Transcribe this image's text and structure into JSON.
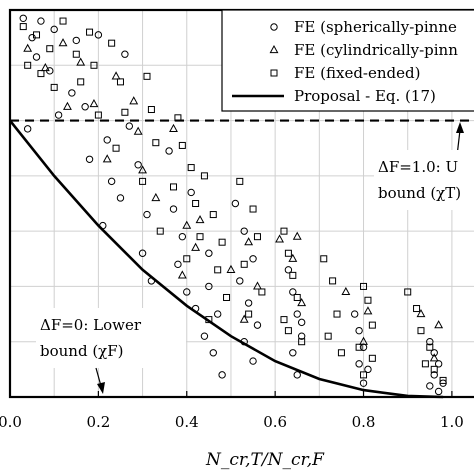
{
  "chart_data": {
    "type": "scatter",
    "xlabel": "N_cr,T/N_cr,F",
    "xlim": [
      0.0,
      1.05
    ],
    "ylim": [
      0.0,
      1.4
    ],
    "x_ticks": [
      "0.0",
      "0.2",
      "0.4",
      "0.6",
      "0.8",
      "1.0"
    ],
    "grid": true,
    "legend_position": "top-right",
    "legend": [
      {
        "label": "FE (spherically-pinne",
        "marker": "circle"
      },
      {
        "label": "FE (cylindrically-pinn",
        "marker": "triangle"
      },
      {
        "label": "FE (fixed-ended)",
        "marker": "square"
      },
      {
        "label": "Proposal - Eq. (17)",
        "marker": "line"
      }
    ],
    "annotations": {
      "upper": {
        "line1": "ΔF=1.0: U",
        "line2": "bound (χT)"
      },
      "lower": {
        "line1": "ΔF=0:  Lower",
        "line2": "bound (χF)"
      }
    },
    "reference_line": {
      "y": 1.0,
      "style": "dashed"
    },
    "proposal_curve": {
      "x": [
        0.0,
        0.1,
        0.2,
        0.3,
        0.4,
        0.5,
        0.6,
        0.7,
        0.8,
        0.9,
        0.98
      ],
      "y": [
        1.0,
        0.8,
        0.62,
        0.46,
        0.33,
        0.22,
        0.13,
        0.065,
        0.025,
        0.004,
        0.0
      ]
    },
    "series": [
      {
        "marker": "circle",
        "points": [
          [
            0.03,
            1.37
          ],
          [
            0.05,
            1.3
          ],
          [
            0.07,
            1.36
          ],
          [
            0.06,
            1.23
          ],
          [
            0.1,
            1.33
          ],
          [
            0.09,
            1.18
          ],
          [
            0.04,
            0.97
          ],
          [
            0.11,
            1.02
          ],
          [
            0.15,
            1.29
          ],
          [
            0.14,
            1.1
          ],
          [
            0.17,
            1.05
          ],
          [
            0.18,
            0.86
          ],
          [
            0.2,
            1.31
          ],
          [
            0.22,
            0.93
          ],
          [
            0.23,
            0.78
          ],
          [
            0.21,
            0.62
          ],
          [
            0.26,
            1.24
          ],
          [
            0.27,
            0.98
          ],
          [
            0.25,
            0.72
          ],
          [
            0.29,
            0.84
          ],
          [
            0.31,
            0.66
          ],
          [
            0.3,
            0.52
          ],
          [
            0.32,
            0.42
          ],
          [
            0.36,
            0.89
          ],
          [
            0.37,
            0.68
          ],
          [
            0.39,
            0.58
          ],
          [
            0.38,
            0.48
          ],
          [
            0.4,
            0.38
          ],
          [
            0.42,
            0.32
          ],
          [
            0.41,
            0.74
          ],
          [
            0.45,
            0.4
          ],
          [
            0.47,
            0.3
          ],
          [
            0.44,
            0.22
          ],
          [
            0.46,
            0.16
          ],
          [
            0.48,
            0.08
          ],
          [
            0.45,
            0.52
          ],
          [
            0.51,
            0.7
          ],
          [
            0.53,
            0.6
          ],
          [
            0.55,
            0.5
          ],
          [
            0.52,
            0.42
          ],
          [
            0.54,
            0.34
          ],
          [
            0.56,
            0.26
          ],
          [
            0.53,
            0.2
          ],
          [
            0.55,
            0.13
          ],
          [
            0.63,
            0.46
          ],
          [
            0.64,
            0.38
          ],
          [
            0.65,
            0.3
          ],
          [
            0.66,
            0.22
          ],
          [
            0.64,
            0.16
          ],
          [
            0.65,
            0.08
          ],
          [
            0.66,
            0.27
          ],
          [
            0.78,
            0.3
          ],
          [
            0.79,
            0.24
          ],
          [
            0.8,
            0.18
          ],
          [
            0.79,
            0.12
          ],
          [
            0.81,
            0.1
          ],
          [
            0.8,
            0.05
          ],
          [
            0.95,
            0.2
          ],
          [
            0.96,
            0.16
          ],
          [
            0.97,
            0.12
          ],
          [
            0.96,
            0.08
          ],
          [
            0.98,
            0.05
          ],
          [
            0.97,
            0.02
          ],
          [
            0.95,
            0.04
          ]
        ]
      },
      {
        "marker": "triangle",
        "points": [
          [
            0.04,
            1.26
          ],
          [
            0.08,
            1.19
          ],
          [
            0.12,
            1.28
          ],
          [
            0.13,
            1.05
          ],
          [
            0.16,
            1.21
          ],
          [
            0.19,
            1.06
          ],
          [
            0.24,
            1.16
          ],
          [
            0.22,
            0.86
          ],
          [
            0.28,
            1.07
          ],
          [
            0.3,
            0.82
          ],
          [
            0.33,
            0.72
          ],
          [
            0.29,
            0.96
          ],
          [
            0.37,
            0.97
          ],
          [
            0.4,
            0.62
          ],
          [
            0.42,
            0.54
          ],
          [
            0.39,
            0.44
          ],
          [
            0.43,
            0.64
          ],
          [
            0.5,
            0.46
          ],
          [
            0.54,
            0.56
          ],
          [
            0.53,
            0.28
          ],
          [
            0.56,
            0.4
          ],
          [
            0.61,
            0.57
          ],
          [
            0.64,
            0.5
          ],
          [
            0.66,
            0.34
          ],
          [
            0.65,
            0.58
          ],
          [
            0.76,
            0.38
          ],
          [
            0.8,
            0.2
          ],
          [
            0.81,
            0.31
          ],
          [
            0.93,
            0.3
          ],
          [
            0.97,
            0.26
          ],
          [
            0.96,
            0.14
          ]
        ]
      },
      {
        "marker": "square",
        "points": [
          [
            0.03,
            1.34
          ],
          [
            0.04,
            1.2
          ],
          [
            0.06,
            1.31
          ],
          [
            0.07,
            1.17
          ],
          [
            0.09,
            1.26
          ],
          [
            0.1,
            1.12
          ],
          [
            0.12,
            1.36
          ],
          [
            0.15,
            1.24
          ],
          [
            0.16,
            1.14
          ],
          [
            0.18,
            1.32
          ],
          [
            0.19,
            1.2
          ],
          [
            0.2,
            1.02
          ],
          [
            0.23,
            1.28
          ],
          [
            0.25,
            1.14
          ],
          [
            0.26,
            1.03
          ],
          [
            0.24,
            0.9
          ],
          [
            0.31,
            1.16
          ],
          [
            0.32,
            1.04
          ],
          [
            0.33,
            0.92
          ],
          [
            0.3,
            0.78
          ],
          [
            0.34,
            0.6
          ],
          [
            0.38,
            1.01
          ],
          [
            0.39,
            0.91
          ],
          [
            0.41,
            0.83
          ],
          [
            0.37,
            0.76
          ],
          [
            0.42,
            0.7
          ],
          [
            0.43,
            0.58
          ],
          [
            0.4,
            0.5
          ],
          [
            0.44,
            0.8
          ],
          [
            0.46,
            0.66
          ],
          [
            0.48,
            0.56
          ],
          [
            0.47,
            0.46
          ],
          [
            0.49,
            0.36
          ],
          [
            0.45,
            0.28
          ],
          [
            0.52,
            0.78
          ],
          [
            0.55,
            0.68
          ],
          [
            0.56,
            0.58
          ],
          [
            0.53,
            0.48
          ],
          [
            0.57,
            0.38
          ],
          [
            0.54,
            0.3
          ],
          [
            0.62,
            0.6
          ],
          [
            0.63,
            0.52
          ],
          [
            0.64,
            0.44
          ],
          [
            0.65,
            0.36
          ],
          [
            0.62,
            0.28
          ],
          [
            0.66,
            0.2
          ],
          [
            0.63,
            0.24
          ],
          [
            0.71,
            0.5
          ],
          [
            0.73,
            0.42
          ],
          [
            0.74,
            0.3
          ],
          [
            0.72,
            0.22
          ],
          [
            0.75,
            0.16
          ],
          [
            0.8,
            0.4
          ],
          [
            0.81,
            0.35
          ],
          [
            0.82,
            0.26
          ],
          [
            0.79,
            0.18
          ],
          [
            0.82,
            0.14
          ],
          [
            0.8,
            0.08
          ],
          [
            0.9,
            0.38
          ],
          [
            0.92,
            0.32
          ],
          [
            0.93,
            0.24
          ],
          [
            0.95,
            0.18
          ],
          [
            0.94,
            0.12
          ],
          [
            0.96,
            0.1
          ],
          [
            0.98,
            0.06
          ]
        ]
      }
    ]
  }
}
